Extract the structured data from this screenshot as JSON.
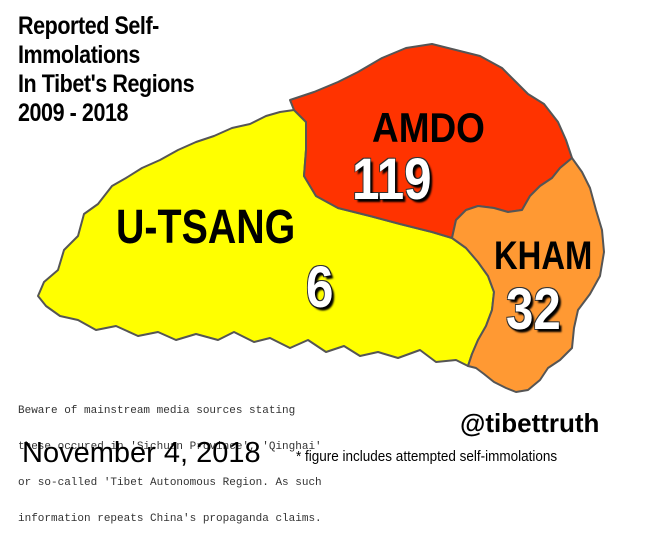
{
  "title_lines": [
    "Reported Self-",
    "Immolations",
    "In Tibet's Regions",
    "2009 - 2018"
  ],
  "regions": [
    {
      "name": "U-TSANG",
      "count": "6",
      "color": "#ffff00"
    },
    {
      "name": "AMDO",
      "count": "119",
      "color": "#ff3300"
    },
    {
      "name": "KHAM",
      "count": "32",
      "color": "#ff9933"
    }
  ],
  "disclaimer_lines": [
    "Beware of mainstream media sources stating",
    "these occured in 'Sichuan Province', 'Qinghai'",
    "or so-called 'Tibet Autonomous Region. As such",
    "information repeats China's propaganda claims."
  ],
  "handle": "@tibettruth",
  "date": "November 4, 2018",
  "footnote": "* figure includes attempted self-immolations",
  "colors": {
    "background": "#ffffff",
    "border": "#555555"
  }
}
